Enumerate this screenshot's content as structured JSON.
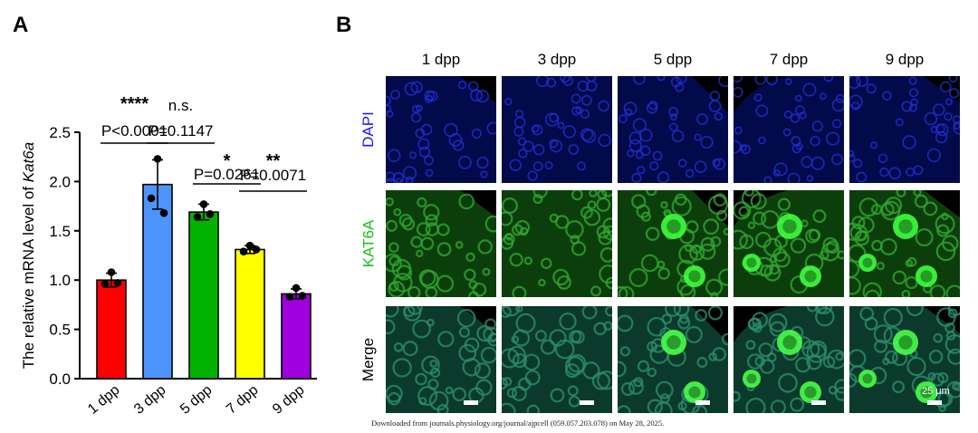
{
  "panels": {
    "a": "A",
    "b": "B"
  },
  "chart_data": {
    "type": "bar",
    "categories": [
      "1 dpp",
      "3 dpp",
      "5 dpp",
      "7 dpp",
      "9 dpp"
    ],
    "values": [
      1.0,
      1.97,
      1.69,
      1.31,
      0.86
    ],
    "errors": [
      0.07,
      0.25,
      0.08,
      0.04,
      0.05
    ],
    "points": [
      [
        1.08,
        0.96,
        0.97
      ],
      [
        2.23,
        1.83,
        1.68
      ],
      [
        1.77,
        1.64,
        1.67
      ],
      [
        1.35,
        1.29,
        1.31
      ],
      [
        0.92,
        0.83,
        0.84
      ]
    ],
    "colors": [
      "#ff0000",
      "#4d94ff",
      "#00b200",
      "#ffff00",
      "#a000e0"
    ],
    "ylabel_prefix": "The relative mRNA level of ",
    "ylabel_italic": "Kat6a",
    "xlabel": "",
    "ylim": [
      0,
      2.5
    ],
    "yticks": [
      "0.0",
      "0.5",
      "1.0",
      "1.5",
      "2.0",
      "2.5"
    ],
    "comparisons": [
      {
        "from": 0,
        "to": 1,
        "stars": "****",
        "p": "P<0.0001"
      },
      {
        "from": 1,
        "to": 2,
        "stars": "n.s.",
        "p": "P=0.1147"
      },
      {
        "from": 2,
        "to": 3,
        "stars": "*",
        "p": "P=0.0261"
      },
      {
        "from": 3,
        "to": 4,
        "stars": "**",
        "p": "P=0.0071"
      }
    ]
  },
  "micrograph": {
    "columns": [
      "1 dpp",
      "3 dpp",
      "5 dpp",
      "7 dpp",
      "9 dpp"
    ],
    "rows": [
      {
        "label": "DAPI",
        "color": "#1a1aff"
      },
      {
        "label": "KAT6A",
        "color": "#19c219"
      },
      {
        "label": "Merge",
        "color": "#000000"
      }
    ],
    "scale_label": "25 μm"
  },
  "footer": "Downloaded from journals.physiology.org/journal/ajpcell (059.057.203.078) on May 28, 2025."
}
